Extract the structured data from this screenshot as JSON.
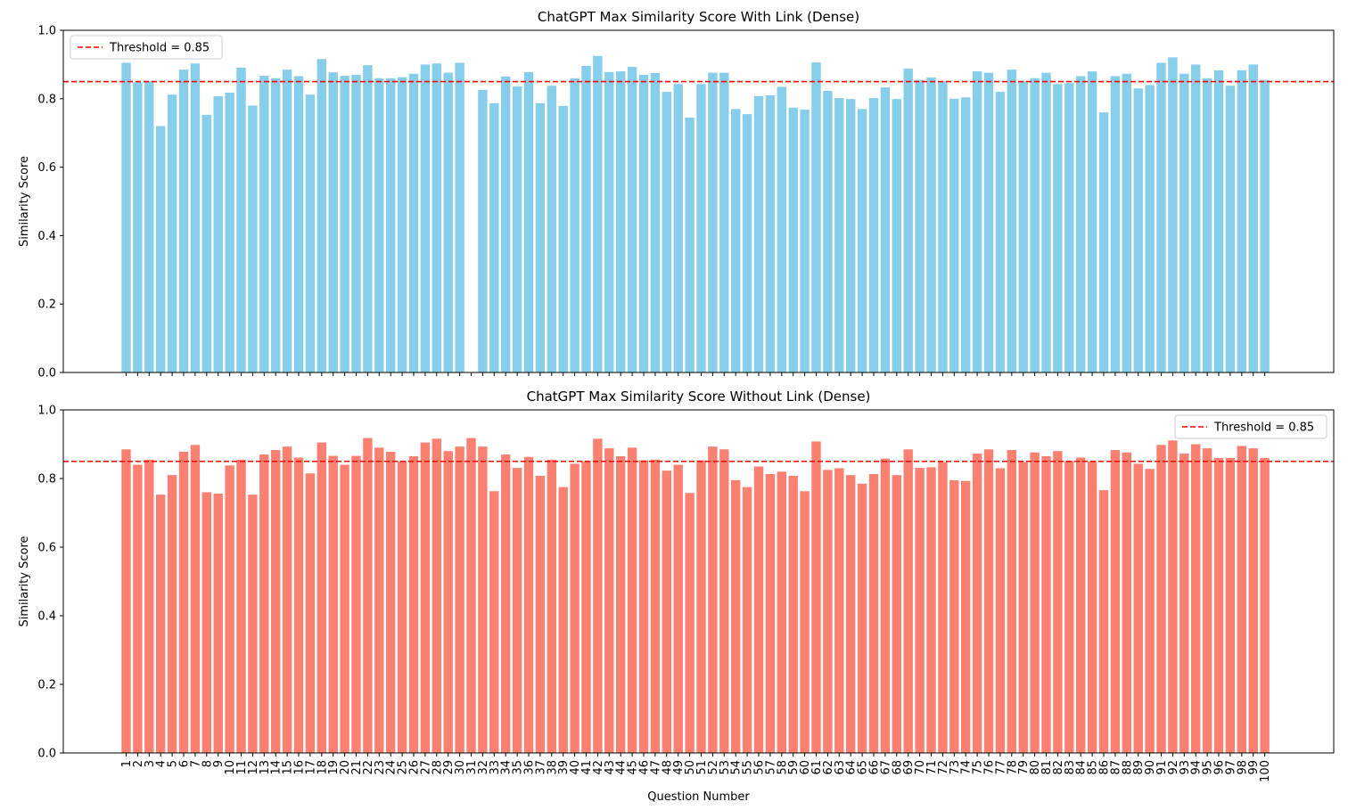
{
  "chart_data": [
    {
      "type": "bar",
      "title": "ChatGPT Max Similarity Score With Link (Dense)",
      "xlabel": "",
      "ylabel": "Similarity Score",
      "ylim": [
        0,
        1.0
      ],
      "yticks": [
        "0.0",
        "0.2",
        "0.4",
        "0.6",
        "0.8",
        "1.0"
      ],
      "color": "#87ceeb",
      "threshold": {
        "value": 0.85,
        "label": "Threshold = 0.85",
        "color": "#ff0000"
      },
      "legend": "top-left",
      "categories": [
        "1",
        "2",
        "3",
        "4",
        "5",
        "6",
        "7",
        "8",
        "9",
        "10",
        "11",
        "12",
        "13",
        "14",
        "15",
        "16",
        "17",
        "18",
        "19",
        "20",
        "21",
        "22",
        "23",
        "24",
        "25",
        "26",
        "27",
        "28",
        "29",
        "30",
        "31",
        "32",
        "33",
        "34",
        "35",
        "36",
        "37",
        "38",
        "39",
        "40",
        "41",
        "42",
        "43",
        "44",
        "45",
        "46",
        "47",
        "48",
        "49",
        "50",
        "51",
        "52",
        "53",
        "54",
        "55",
        "56",
        "57",
        "58",
        "59",
        "60",
        "61",
        "62",
        "63",
        "64",
        "65",
        "66",
        "67",
        "68",
        "69",
        "70",
        "71",
        "72",
        "73",
        "74",
        "75",
        "76",
        "77",
        "78",
        "79",
        "80",
        "81",
        "82",
        "83",
        "84",
        "85",
        "86",
        "87",
        "88",
        "89",
        "90",
        "91",
        "92",
        "93",
        "94",
        "95",
        "96",
        "97",
        "98",
        "99",
        "100"
      ],
      "values": [
        0.905,
        0.848,
        0.852,
        0.72,
        0.812,
        0.885,
        0.903,
        0.753,
        0.807,
        0.818,
        0.891,
        0.78,
        0.867,
        0.86,
        0.885,
        0.866,
        0.812,
        0.916,
        0.877,
        0.867,
        0.87,
        0.898,
        0.86,
        0.86,
        0.863,
        0.873,
        0.9,
        0.903,
        0.876,
        0.905,
        0.0,
        0.826,
        0.787,
        0.865,
        0.836,
        0.878,
        0.787,
        0.838,
        0.779,
        0.86,
        0.896,
        0.925,
        0.878,
        0.88,
        0.893,
        0.87,
        0.875,
        0.82,
        0.843,
        0.745,
        0.843,
        0.876,
        0.876,
        0.77,
        0.755,
        0.808,
        0.81,
        0.835,
        0.774,
        0.768,
        0.906,
        0.823,
        0.802,
        0.799,
        0.77,
        0.802,
        0.833,
        0.799,
        0.888,
        0.855,
        0.862,
        0.851,
        0.8,
        0.804,
        0.88,
        0.876,
        0.82,
        0.885,
        0.851,
        0.86,
        0.876,
        0.843,
        0.846,
        0.866,
        0.88,
        0.76,
        0.866,
        0.873,
        0.83,
        0.84,
        0.905,
        0.921,
        0.873,
        0.9,
        0.86,
        0.883,
        0.838,
        0.883,
        0.9,
        0.855
      ]
    },
    {
      "type": "bar",
      "title": "ChatGPT Max Similarity Score Without Link (Dense)",
      "xlabel": "Question Number",
      "ylabel": "Similarity Score",
      "ylim": [
        0,
        1.0
      ],
      "yticks": [
        "0.0",
        "0.2",
        "0.4",
        "0.6",
        "0.8",
        "1.0"
      ],
      "color": "#fa8072",
      "threshold": {
        "value": 0.85,
        "label": "Threshold = 0.85",
        "color": "#ff0000"
      },
      "legend": "top-right",
      "categories": [
        "1",
        "2",
        "3",
        "4",
        "5",
        "6",
        "7",
        "8",
        "9",
        "10",
        "11",
        "12",
        "13",
        "14",
        "15",
        "16",
        "17",
        "18",
        "19",
        "20",
        "21",
        "22",
        "23",
        "24",
        "25",
        "26",
        "27",
        "28",
        "29",
        "30",
        "31",
        "32",
        "33",
        "34",
        "35",
        "36",
        "37",
        "38",
        "39",
        "40",
        "41",
        "42",
        "43",
        "44",
        "45",
        "46",
        "47",
        "48",
        "49",
        "50",
        "51",
        "52",
        "53",
        "54",
        "55",
        "56",
        "57",
        "58",
        "59",
        "60",
        "61",
        "62",
        "63",
        "64",
        "65",
        "66",
        "67",
        "68",
        "69",
        "70",
        "71",
        "72",
        "73",
        "74",
        "75",
        "76",
        "77",
        "78",
        "79",
        "80",
        "81",
        "82",
        "83",
        "84",
        "85",
        "86",
        "87",
        "88",
        "89",
        "90",
        "91",
        "92",
        "93",
        "94",
        "95",
        "96",
        "97",
        "98",
        "99",
        "100"
      ],
      "values": [
        0.885,
        0.84,
        0.855,
        0.753,
        0.81,
        0.878,
        0.898,
        0.76,
        0.756,
        0.838,
        0.855,
        0.753,
        0.87,
        0.883,
        0.893,
        0.861,
        0.815,
        0.905,
        0.866,
        0.84,
        0.866,
        0.918,
        0.89,
        0.878,
        0.85,
        0.865,
        0.905,
        0.916,
        0.88,
        0.893,
        0.918,
        0.893,
        0.763,
        0.87,
        0.831,
        0.863,
        0.808,
        0.855,
        0.775,
        0.843,
        0.85,
        0.916,
        0.888,
        0.865,
        0.89,
        0.853,
        0.855,
        0.823,
        0.84,
        0.758,
        0.853,
        0.893,
        0.885,
        0.795,
        0.775,
        0.835,
        0.813,
        0.82,
        0.808,
        0.763,
        0.908,
        0.825,
        0.83,
        0.81,
        0.785,
        0.813,
        0.858,
        0.81,
        0.885,
        0.831,
        0.833,
        0.848,
        0.795,
        0.793,
        0.873,
        0.885,
        0.83,
        0.883,
        0.848,
        0.876,
        0.865,
        0.88,
        0.851,
        0.861,
        0.85,
        0.766,
        0.883,
        0.876,
        0.843,
        0.828,
        0.898,
        0.911,
        0.873,
        0.9,
        0.888,
        0.86,
        0.86,
        0.895,
        0.888,
        0.86
      ]
    }
  ]
}
